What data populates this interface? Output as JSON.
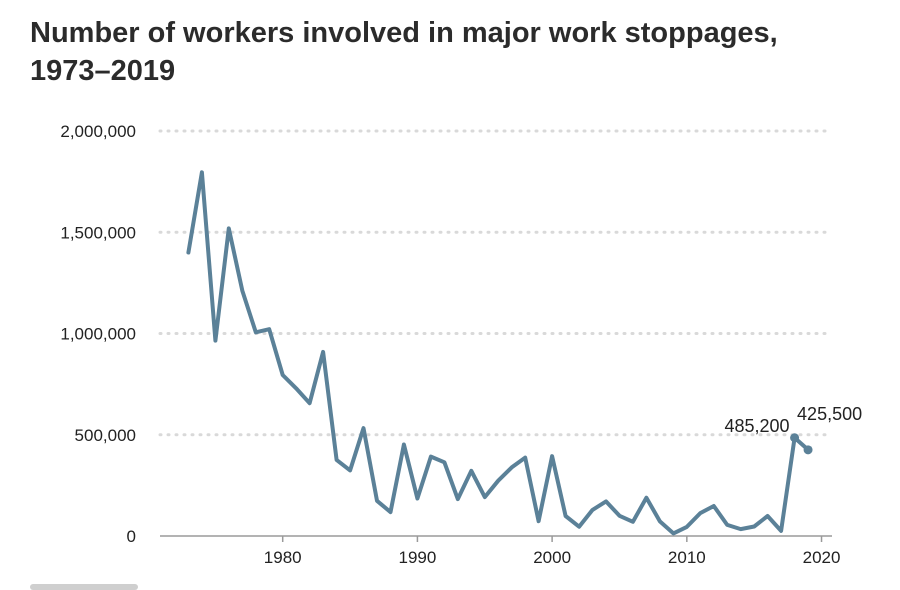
{
  "chart_data": {
    "type": "line",
    "title": "Number of workers involved in major work stoppages, 1973–2019",
    "xlabel": "",
    "ylabel": "",
    "xlim": [
      1970,
      2021
    ],
    "ylim": [
      0,
      2000000
    ],
    "x_ticks": [
      1980,
      1990,
      2000,
      2010,
      2020
    ],
    "y_ticks": [
      0,
      500000,
      1000000,
      1500000,
      2000000
    ],
    "y_tick_labels": [
      "0",
      "500,000",
      "1,000,000",
      "1,500,000",
      "2,000,000"
    ],
    "grid": "horizontal dotted",
    "line_color": "#5b8198",
    "series": [
      {
        "x": [
          1973,
          1974,
          1975,
          1976,
          1977,
          1978,
          1979,
          1980,
          1981,
          1982,
          1983,
          1984,
          1985,
          1986,
          1987,
          1988,
          1989,
          1990,
          1991,
          1992,
          1993,
          1994,
          1995,
          1996,
          1997,
          1998,
          1999,
          2000,
          2001,
          2002,
          2003,
          2004,
          2005,
          2006,
          2007,
          2008,
          2009,
          2010,
          2011,
          2012,
          2013,
          2014,
          2015,
          2016,
          2017,
          2018,
          2019
        ],
        "values": [
          1400000,
          1796000,
          965000,
          1519000,
          1212000,
          1006000,
          1021000,
          795000,
          729000,
          656000,
          909000,
          376000,
          324000,
          533000,
          174000,
          118000,
          452000,
          185000,
          392000,
          364000,
          182000,
          322000,
          192000,
          273000,
          339000,
          387000,
          73000,
          394000,
          99000,
          46000,
          129000,
          171000,
          100000,
          70000,
          189000,
          72000,
          13000,
          45000,
          113000,
          148000,
          55000,
          34000,
          47000,
          99000,
          25000,
          485200,
          425500
        ]
      }
    ],
    "annotations": [
      {
        "x": 2018,
        "y": 485200,
        "text": "485,200"
      },
      {
        "x": 2019,
        "y": 425500,
        "text": "425,500"
      }
    ]
  }
}
